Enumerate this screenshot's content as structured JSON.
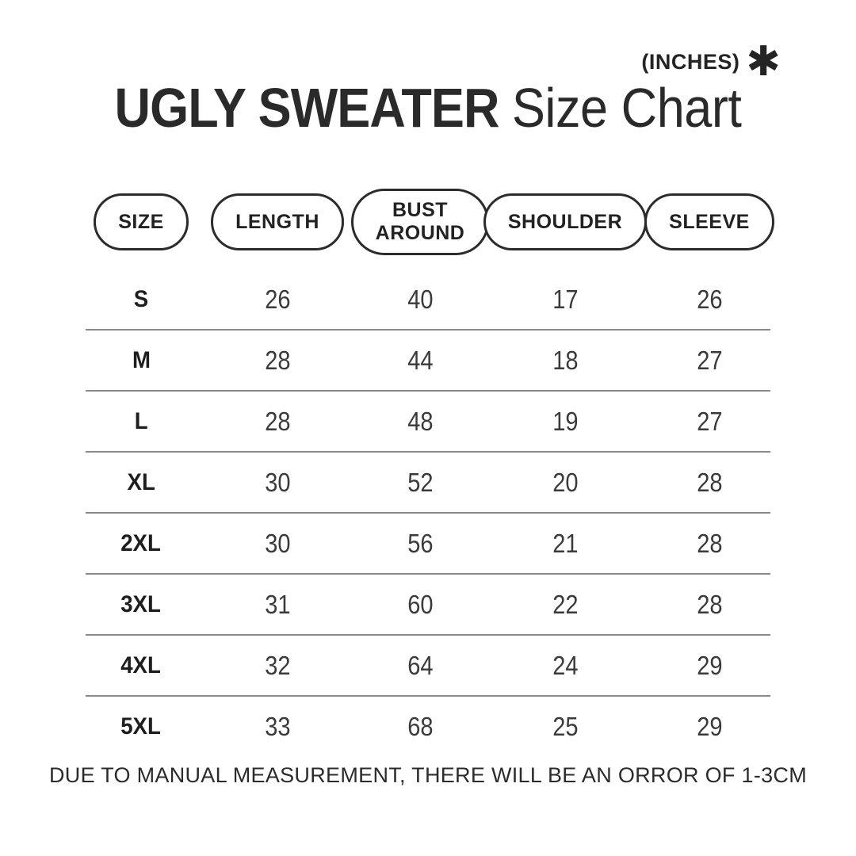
{
  "header": {
    "units_label": "(INCHES)",
    "asterisk_icon": "✱",
    "title_bold": "UGLY SWEATER",
    "title_light": "Size Chart"
  },
  "table": {
    "columns": [
      {
        "id": "size",
        "label": "SIZE"
      },
      {
        "id": "length",
        "label": "LENGTH"
      },
      {
        "id": "bust",
        "label": "BUST\nAROUND"
      },
      {
        "id": "shoulder",
        "label": "SHOULDER"
      },
      {
        "id": "sleeve",
        "label": "SLEEVE"
      }
    ],
    "rows": [
      {
        "size": "S",
        "length": "26",
        "bust": "40",
        "shoulder": "17",
        "sleeve": "26"
      },
      {
        "size": "M",
        "length": "28",
        "bust": "44",
        "shoulder": "18",
        "sleeve": "27"
      },
      {
        "size": "L",
        "length": "28",
        "bust": "48",
        "shoulder": "19",
        "sleeve": "27"
      },
      {
        "size": "XL",
        "length": "30",
        "bust": "52",
        "shoulder": "20",
        "sleeve": "28"
      },
      {
        "size": "2XL",
        "length": "30",
        "bust": "56",
        "shoulder": "21",
        "sleeve": "28"
      },
      {
        "size": "3XL",
        "length": "31",
        "bust": "60",
        "shoulder": "22",
        "sleeve": "28"
      },
      {
        "size": "4XL",
        "length": "32",
        "bust": "64",
        "shoulder": "24",
        "sleeve": "29"
      },
      {
        "size": "5XL",
        "length": "33",
        "bust": "68",
        "shoulder": "25",
        "sleeve": "29"
      }
    ]
  },
  "footer": {
    "note": "DUE TO MANUAL MEASUREMENT, THERE WILL BE AN ORROR OF 1-3CM"
  },
  "colors": {
    "title": "#2a2a2a",
    "pill_border": "#2b2b2b",
    "size_label": "#1e1e1e",
    "value": "#3a3a3a",
    "divider": "#8a8a8a",
    "background": "#ffffff"
  },
  "chart_data": {
    "type": "table",
    "title": "UGLY SWEATER Size Chart",
    "units": "INCHES",
    "columns": [
      "SIZE",
      "LENGTH",
      "BUST AROUND",
      "SHOULDER",
      "SLEEVE"
    ],
    "rows": [
      [
        "S",
        26,
        40,
        17,
        26
      ],
      [
        "M",
        28,
        44,
        18,
        27
      ],
      [
        "L",
        28,
        48,
        19,
        27
      ],
      [
        "XL",
        30,
        52,
        20,
        28
      ],
      [
        "2XL",
        30,
        56,
        21,
        28
      ],
      [
        "3XL",
        31,
        60,
        22,
        28
      ],
      [
        "4XL",
        32,
        64,
        24,
        29
      ],
      [
        "5XL",
        33,
        68,
        25,
        29
      ]
    ],
    "note": "DUE TO MANUAL MEASUREMENT, THERE WILL BE AN ORROR OF 1-3CM"
  }
}
